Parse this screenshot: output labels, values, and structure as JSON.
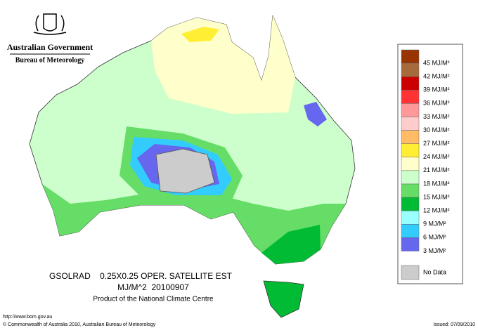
{
  "header": {
    "government": "Australian Government",
    "bureau": "Bureau of Meteorology"
  },
  "legend": [
    {
      "label": "45 MJ/M²",
      "color": "#993300"
    },
    {
      "label": "42 MJ/M²",
      "color": "#a66b3c"
    },
    {
      "label": "39 MJ/M²",
      "color": "#cc0000"
    },
    {
      "label": "36 MJ/M²",
      "color": "#ff3333"
    },
    {
      "label": "33 MJ/M²",
      "color": "#ff9999"
    },
    {
      "label": "30 MJ/M²",
      "color": "#ffcccc"
    },
    {
      "label": "27 MJ/M²",
      "color": "#ffbb66"
    },
    {
      "label": "24 MJ/M²",
      "color": "#ffee33"
    },
    {
      "label": "21 MJ/M²",
      "color": "#ffffcc"
    },
    {
      "label": "18 MJ/M²",
      "color": "#ccffcc"
    },
    {
      "label": "15 MJ/M²",
      "color": "#66dd66"
    },
    {
      "label": "12 MJ/M²",
      "color": "#00bb33"
    },
    {
      "label": "9 MJ/M²",
      "color": "#99ffff"
    },
    {
      "label": "6 MJ/M²",
      "color": "#33ccff"
    },
    {
      "label": "3 MJ/M²",
      "color": "#6666ee"
    },
    {
      "label": "No Data",
      "color": "#cccccc"
    }
  ],
  "caption": {
    "line1": "GSOLRAD    0.25X0.25 OPER. SATELLITE EST",
    "line2": "MJ/M^2  20100907",
    "line3": "Product of the National Climate Centre"
  },
  "footer": {
    "url": "http://www.bom.gov.au",
    "copyright": "© Commonwealth of Australia 2010, Australian Bureau of Meteorology",
    "issued": "Issued: 07/09/2010"
  }
}
